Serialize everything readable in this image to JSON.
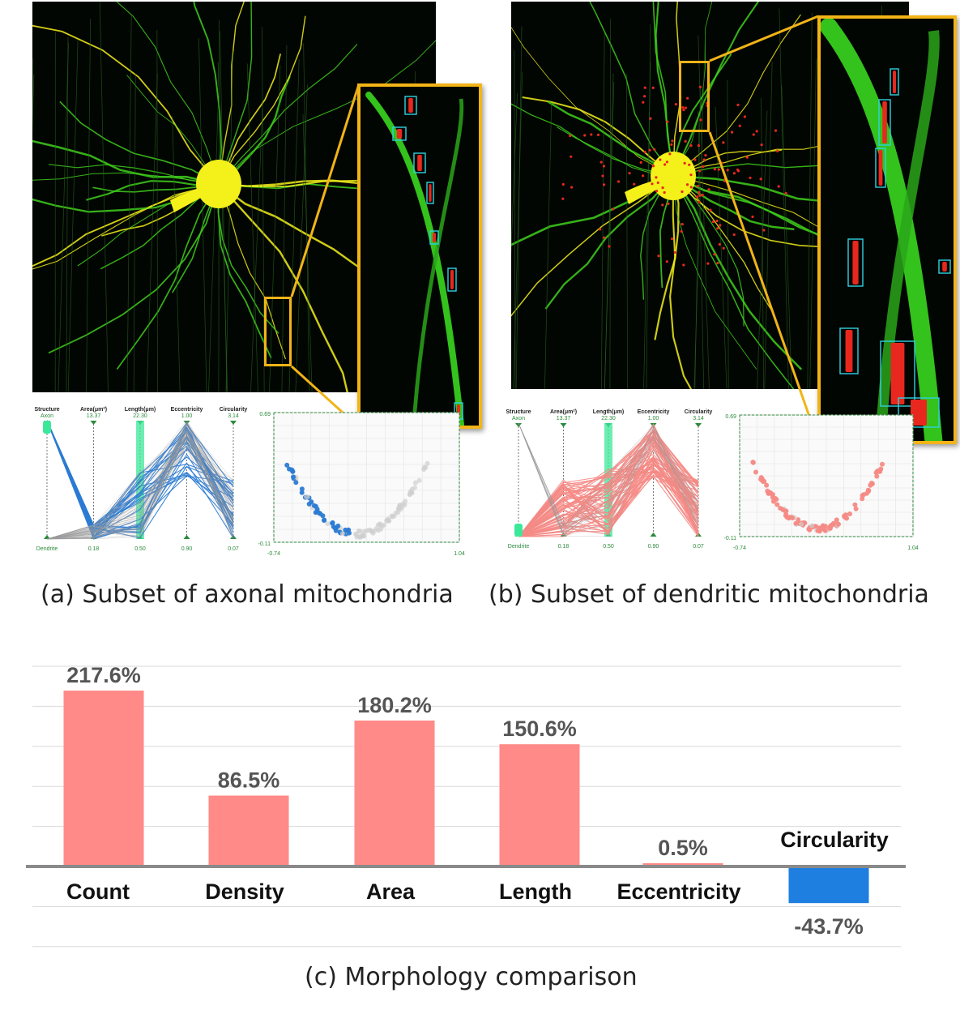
{
  "panel_a": {
    "caption": "(a) Subset of axonal mitochondria",
    "pcp": {
      "axes": [
        {
          "name": "Structure",
          "top": "Axon",
          "bottom": "Dendrite"
        },
        {
          "name": "Area(μm²)",
          "top": "13.37",
          "bottom": "0.18"
        },
        {
          "name": "Length(μm)",
          "top": "22.30",
          "bottom": "0.50"
        },
        {
          "name": "Eccentricity",
          "top": "1.00",
          "bottom": "0.90"
        },
        {
          "name": "Circularity",
          "top": "3.14",
          "bottom": "0.07"
        }
      ]
    },
    "scatter": {
      "y_top": "0.69",
      "y_bottom": "-0.11",
      "x_left": "-0.74",
      "x_right": "1.04"
    }
  },
  "panel_b": {
    "caption": "(b) Subset of dendritic mitochondria",
    "pcp": {
      "axes": [
        {
          "name": "Structure",
          "top": "Axon",
          "bottom": "Dendrite"
        },
        {
          "name": "Area(μm²)",
          "top": "13.37",
          "bottom": "0.18"
        },
        {
          "name": "Length(μm)",
          "top": "22.30",
          "bottom": "0.50"
        },
        {
          "name": "Eccentricity",
          "top": "1.00",
          "bottom": "0.90"
        },
        {
          "name": "Circularity",
          "top": "3.14",
          "bottom": "0.07"
        }
      ]
    },
    "scatter": {
      "y_top": "0.69",
      "y_bottom": "-0.11",
      "x_left": "-0.74",
      "x_right": "1.04"
    }
  },
  "colors": {
    "axon_blue": "#2b7bd3",
    "dendrite_salmon": "#f58a85",
    "bar_positive": "#ff8a87",
    "bar_negative": "#1e7fe0",
    "highlight_orange": "#f2b417",
    "neuron_green": "#3fd01c",
    "soma_yellow": "#f3f01a"
  },
  "chart_data": {
    "type": "bar",
    "title": "(c) Morphology comparison",
    "categories": [
      "Count",
      "Density",
      "Area",
      "Length",
      "Eccentricity",
      "Circularity"
    ],
    "values": [
      217.6,
      86.5,
      180.2,
      150.6,
      0.5,
      -43.7
    ],
    "value_labels": [
      "217.6%",
      "86.5%",
      "180.2%",
      "150.6%",
      "0.5%",
      "-43.7%"
    ],
    "ylim": [
      -100,
      250
    ],
    "grid": true
  }
}
